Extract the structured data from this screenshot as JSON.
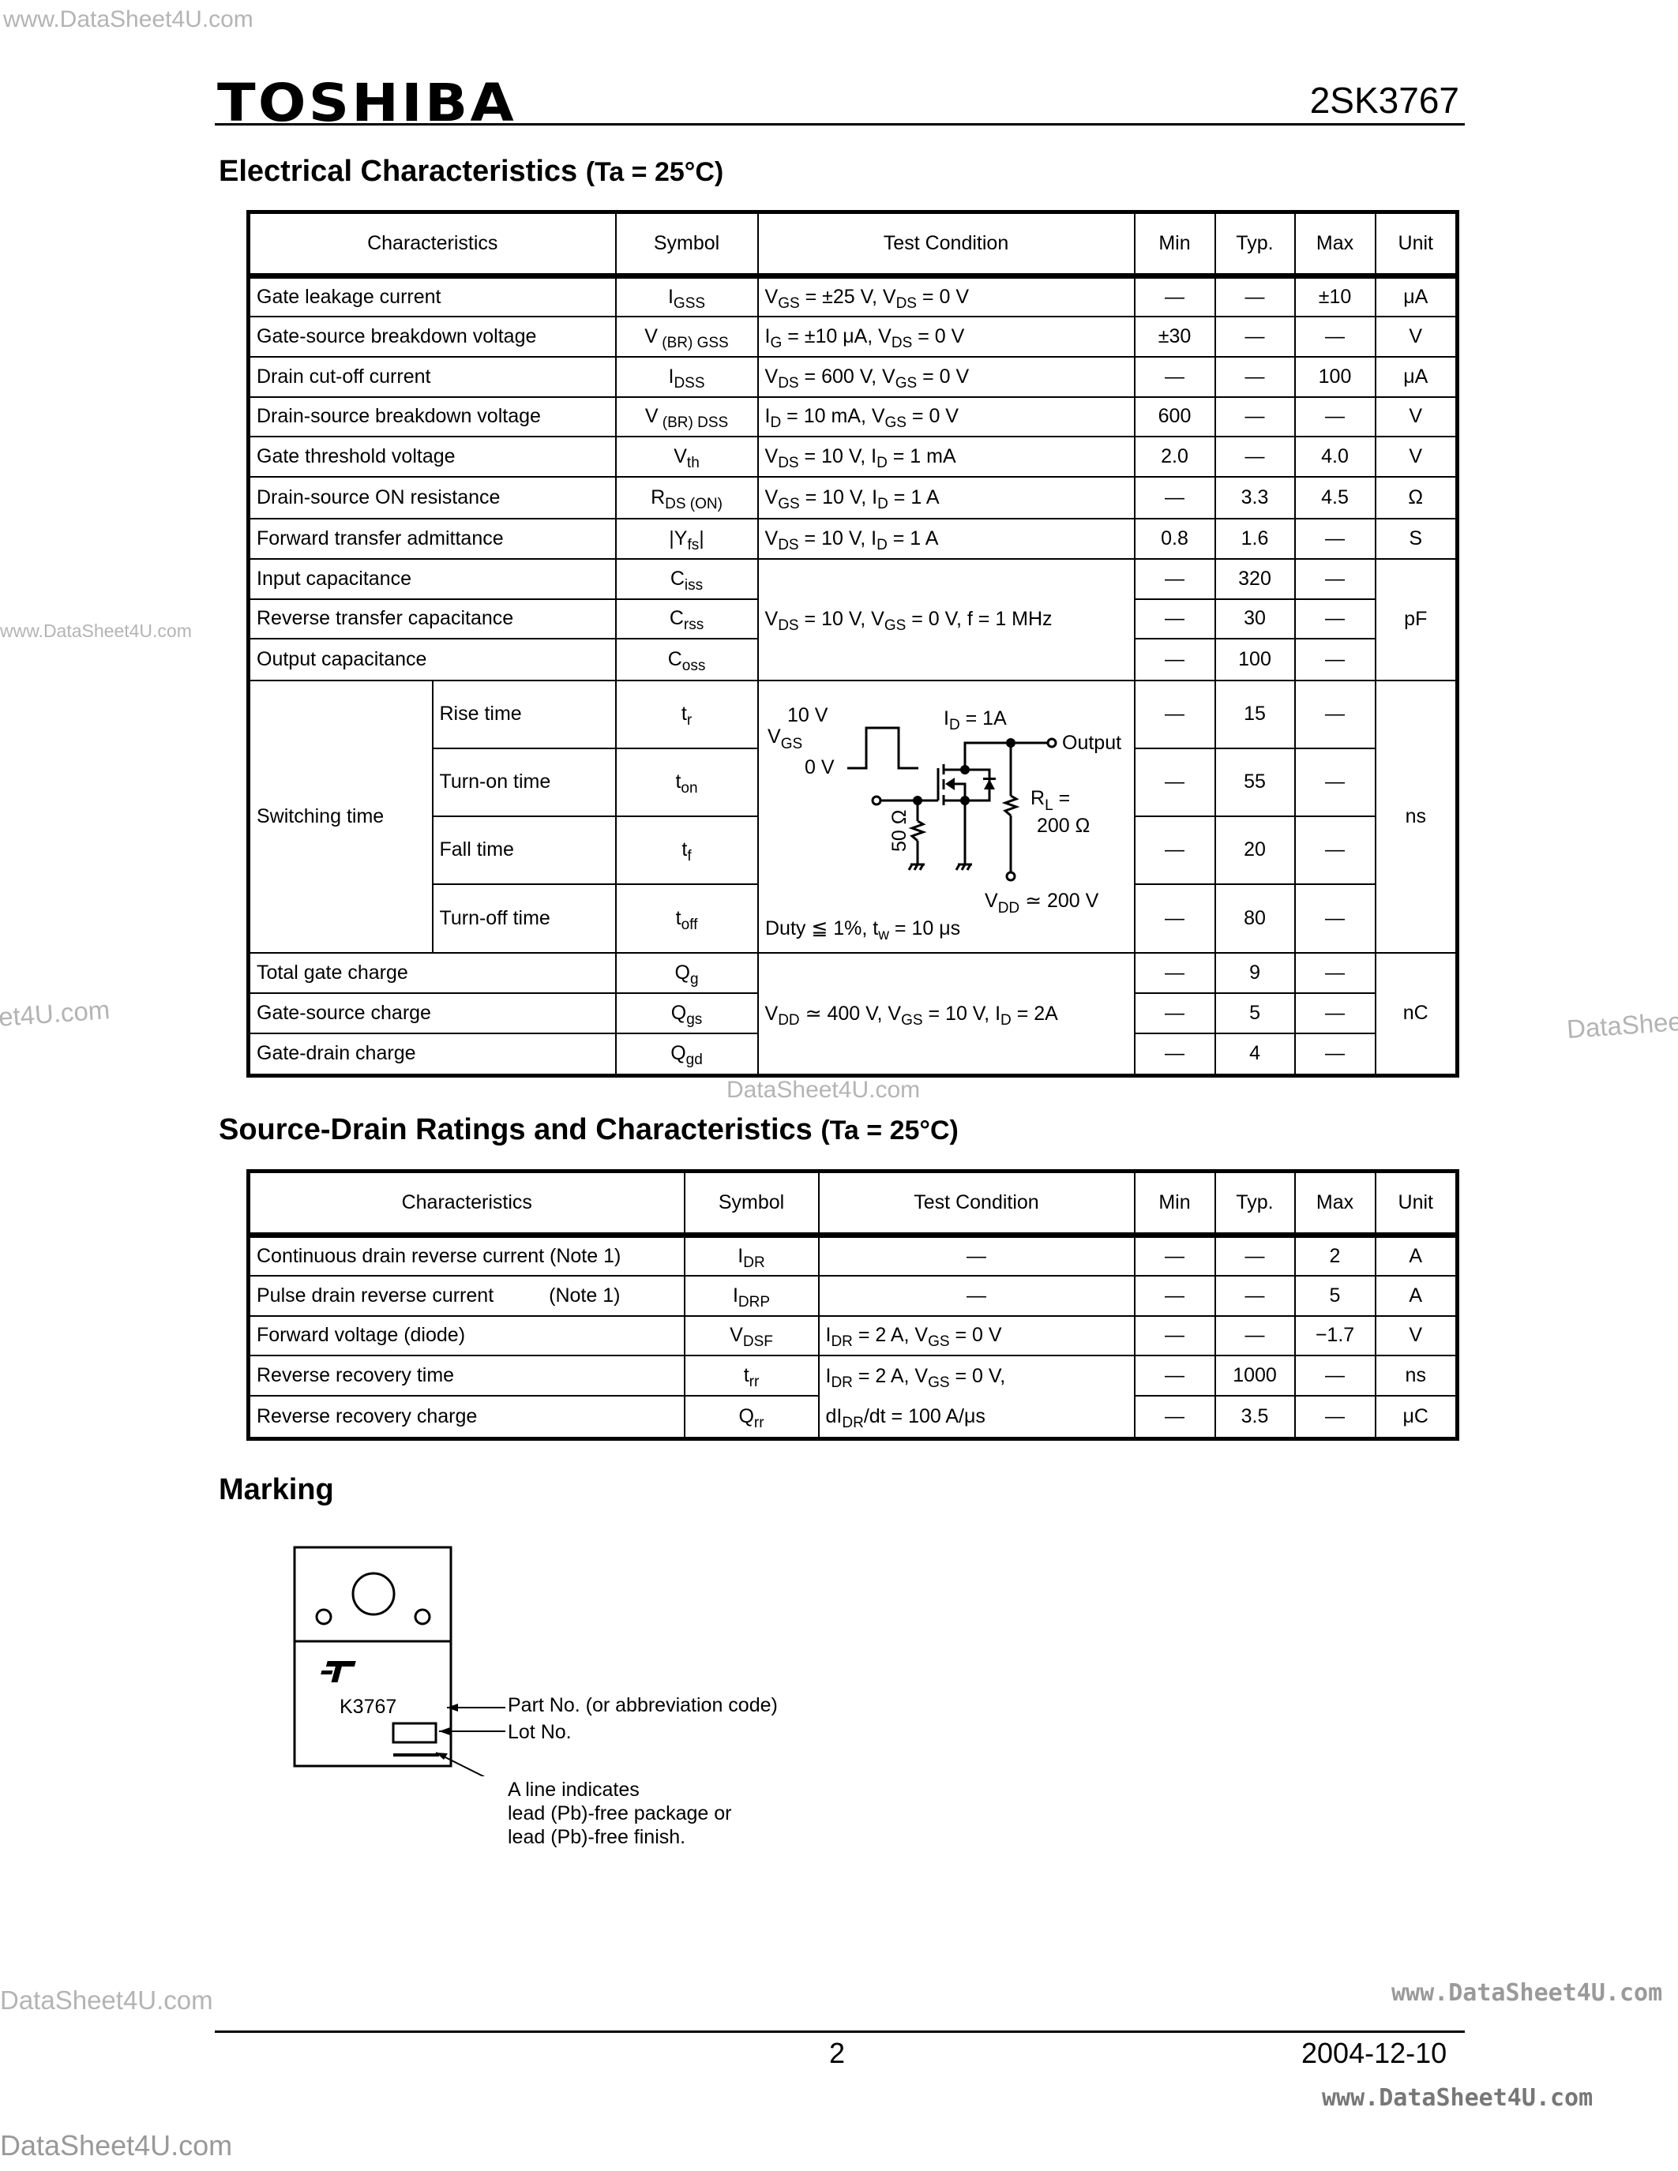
{
  "header": {
    "brand": "TOSHIBA",
    "part_number": "2SK3767"
  },
  "electrical": {
    "title": "Electrical Characteristics",
    "condition": "(Ta = 25°C)",
    "columns": [
      "Characteristics",
      "Symbol",
      "Test Condition",
      "Min",
      "Typ.",
      "Max",
      "Unit"
    ],
    "switching_group": "Switching time",
    "rows": [
      {
        "name": "Gate leakage current",
        "symbol": [
          "I",
          "GSS"
        ],
        "cond": [
          "V",
          "GS",
          " = ±25 V, V",
          "DS",
          " = 0 V"
        ],
        "min": "—",
        "typ": "—",
        "max": "±10",
        "unit": "μA"
      },
      {
        "name": "Gate-source breakdown voltage",
        "symbol": [
          "V",
          " (BR) GSS"
        ],
        "cond": [
          "I",
          "G",
          " = ±10 μA, V",
          "DS",
          " = 0 V"
        ],
        "min": "±30",
        "typ": "—",
        "max": "—",
        "unit": "V"
      },
      {
        "name": "Drain cut-off current",
        "symbol": [
          "I",
          "DSS"
        ],
        "cond": [
          "V",
          "DS",
          " = 600 V, V",
          "GS",
          " = 0 V"
        ],
        "min": "—",
        "typ": "—",
        "max": "100",
        "unit": "μA"
      },
      {
        "name": "Drain-source breakdown voltage",
        "symbol": [
          "V",
          " (BR) DSS"
        ],
        "cond": [
          "I",
          "D",
          " = 10 mA, V",
          "GS",
          " = 0 V"
        ],
        "min": "600",
        "typ": "—",
        "max": "—",
        "unit": "V"
      },
      {
        "name": "Gate threshold voltage",
        "symbol": [
          "V",
          "th"
        ],
        "cond": [
          "V",
          "DS",
          " = 10 V, I",
          "D",
          " = 1 mA"
        ],
        "min": "2.0",
        "typ": "—",
        "max": "4.0",
        "unit": "V"
      },
      {
        "name": "Drain-source ON resistance",
        "symbol": [
          "R",
          "DS (ON)"
        ],
        "cond": [
          "V",
          "GS",
          " = 10 V, I",
          "D",
          " = 1 A"
        ],
        "min": "—",
        "typ": "3.3",
        "max": "4.5",
        "unit": "Ω"
      },
      {
        "name": "Forward transfer admittance",
        "symbol": [
          "|Y",
          "fs",
          "|"
        ],
        "cond": [
          "V",
          "DS",
          " = 10 V, I",
          "D",
          " = 1 A"
        ],
        "min": "0.8",
        "typ": "1.6",
        "max": "—",
        "unit": "S"
      },
      {
        "name": "Input capacitance",
        "symbol": [
          "C",
          "iss"
        ],
        "cond": [
          "V",
          "DS",
          " = 10 V, V",
          "GS",
          " = 0 V, f = 1 MHz"
        ],
        "min": "—",
        "typ": "320",
        "max": "—",
        "unit": "pF"
      },
      {
        "name": "Reverse transfer capacitance",
        "symbol": [
          "C",
          "rss"
        ],
        "min": "—",
        "typ": "30",
        "max": "—"
      },
      {
        "name": "Output capacitance",
        "symbol": [
          "C",
          "oss"
        ],
        "min": "—",
        "typ": "100",
        "max": "—"
      },
      {
        "name": "Rise time",
        "symbol": [
          "t",
          "r"
        ],
        "min": "—",
        "typ": "15",
        "max": "—",
        "unit": "ns"
      },
      {
        "name": "Turn-on time",
        "symbol": [
          "t",
          "on"
        ],
        "min": "—",
        "typ": "55",
        "max": "—"
      },
      {
        "name": "Fall time",
        "symbol": [
          "t",
          "f"
        ],
        "min": "—",
        "typ": "20",
        "max": "—"
      },
      {
        "name": "Turn-off time",
        "symbol": [
          "t",
          "off"
        ],
        "min": "—",
        "typ": "80",
        "max": "—"
      },
      {
        "name": "Total gate charge",
        "symbol": [
          "Q",
          "g"
        ],
        "cond": [
          "V",
          "DD",
          " ≃ 400 V, V",
          "GS",
          " = 10 V, I",
          "D",
          " = 2A"
        ],
        "min": "—",
        "typ": "9",
        "max": "—",
        "unit": "nC"
      },
      {
        "name": "Gate-source charge",
        "symbol": [
          "Q",
          "gs"
        ],
        "min": "—",
        "typ": "5",
        "max": "—"
      },
      {
        "name": "Gate-drain charge",
        "symbol": [
          "Q",
          "gd"
        ],
        "min": "—",
        "typ": "4",
        "max": "—"
      }
    ],
    "circuit": {
      "vgs_high": "10 V",
      "vgs": "V",
      "vgs_sub": "GS",
      "vgs_low": "0 V",
      "id": "I",
      "id_sub": "D",
      "id_value": " = 1A",
      "output": "Output",
      "rl": "R",
      "rl_sub": "L",
      "rl_eq": " =",
      "rl_value": "200 Ω",
      "rg_value": "50 Ω",
      "vdd": "V",
      "vdd_sub": "DD",
      "vdd_value": " ≃ 200 V",
      "duty": "Duty ≦ 1%, t",
      "duty_sub": "w",
      "duty_value": " = 10 μs"
    }
  },
  "source_drain": {
    "title": "Source-Drain Ratings and Characteristics",
    "condition": "(Ta = 25°C)",
    "columns": [
      "Characteristics",
      "Symbol",
      "Test Condition",
      "Min",
      "Typ.",
      "Max",
      "Unit"
    ],
    "rows": [
      {
        "name": "Continuous drain reverse current (Note 1)",
        "symbol": [
          "I",
          "DR"
        ],
        "cond": [
          "—"
        ],
        "min": "—",
        "typ": "—",
        "max": "2",
        "unit": "A"
      },
      {
        "name": "Pulse drain reverse current",
        "note": "(Note 1)",
        "symbol": [
          "I",
          "DRP"
        ],
        "cond": [
          "—"
        ],
        "min": "—",
        "typ": "—",
        "max": "5",
        "unit": "A"
      },
      {
        "name": "Forward voltage (diode)",
        "symbol": [
          "V",
          "DSF"
        ],
        "cond": [
          "I",
          "DR",
          " = 2 A, V",
          "GS",
          " = 0 V"
        ],
        "min": "—",
        "typ": "—",
        "max": "−1.7",
        "unit": "V"
      },
      {
        "name": "Reverse recovery time",
        "symbol": [
          "t",
          "rr"
        ],
        "cond": [
          "I",
          "DR",
          " = 2 A, V",
          "GS",
          " = 0 V,"
        ],
        "cond2": [
          "dI",
          "DR",
          "/dt = 100 A/μs"
        ],
        "min": "—",
        "typ": "1000",
        "max": "—",
        "unit": "ns"
      },
      {
        "name": "Reverse recovery charge",
        "symbol": [
          "Q",
          "rr"
        ],
        "min": "—",
        "typ": "3.5",
        "max": "—",
        "unit": "μC"
      }
    ]
  },
  "marking": {
    "title": "Marking",
    "logo_text": "T",
    "code": "K3767",
    "part_label": "Part No. (or abbreviation code)",
    "lot_label": "Lot No.",
    "line_note": [
      "A line indicates",
      "lead (Pb)-free package or",
      "lead (Pb)-free finish."
    ]
  },
  "footer": {
    "page": "2",
    "date": "2004-12-10"
  },
  "watermarks": {
    "top_left": "www.DataSheet4U.com",
    "left_mid": "www.DataSheet4U.com",
    "left_cut": "et4U.com",
    "right_cut": "DataShee",
    "center": "DataSheet4U.com",
    "bottom_left": "DataSheet4U.com",
    "bottom_right_1": "www.DataSheet4U.com",
    "bottom_right_2": "www.DataSheet4U.com",
    "corner": "DataSheet4U.com"
  }
}
